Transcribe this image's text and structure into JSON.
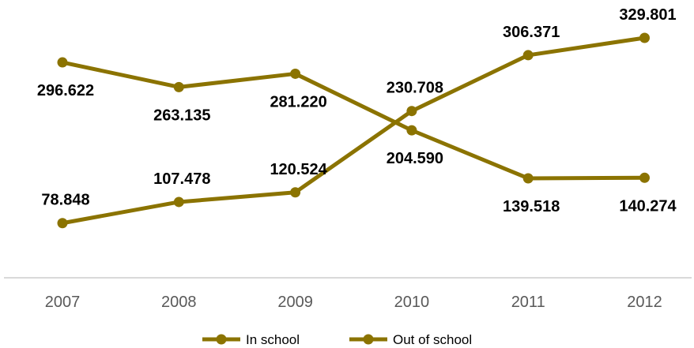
{
  "chart_data": {
    "type": "line",
    "title": "",
    "xlabel": "",
    "ylabel": "",
    "categories": [
      "2007",
      "2008",
      "2009",
      "2010",
      "2011",
      "2012"
    ],
    "series": [
      {
        "name": "In school",
        "values": [
          78.848,
          107.478,
          120.524,
          230.708,
          306.371,
          329.801
        ],
        "labels": [
          "78.848",
          "107.478",
          "120.524",
          "230.708",
          "306.371",
          "329.801"
        ],
        "label_position": [
          "above",
          "above",
          "above",
          "above",
          "above",
          "above"
        ]
      },
      {
        "name": "Out of school",
        "values": [
          296.622,
          263.135,
          281.22,
          204.59,
          139.518,
          140.274
        ],
        "labels": [
          "296.622",
          "263.135",
          "281.220",
          "204.590",
          "139.518",
          "140.274"
        ],
        "label_position": [
          "below",
          "below",
          "below",
          "below",
          "below",
          "below"
        ]
      }
    ],
    "ylim": [
      0,
      350
    ],
    "grid": false,
    "legend": "bottom",
    "colors": {
      "series": "#8B7300",
      "axis": "#D9D9D9",
      "tick_text": "#595959"
    }
  }
}
